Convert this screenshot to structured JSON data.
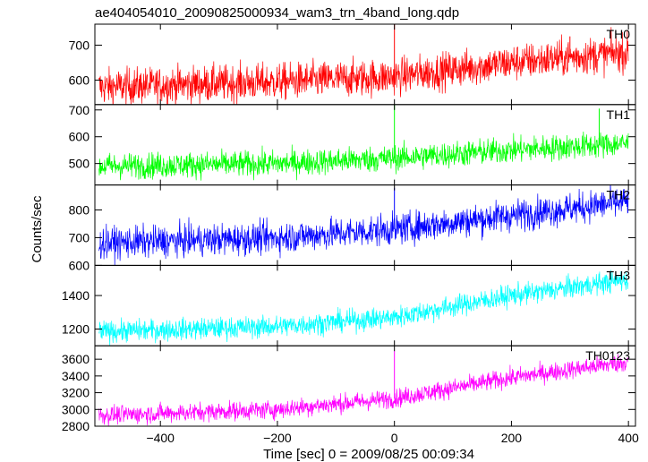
{
  "title": "ae404054010_20090825000934_wam3_trn_4band_long.qdp",
  "xlabel": "Time [sec] 0 = 2009/08/25 00:09:34",
  "ylabel": "Counts/sec",
  "chart_data": {
    "type": "line",
    "xlim": [
      -512,
      412
    ],
    "x_ticks": [
      -400,
      -200,
      0,
      200,
      400
    ],
    "x_tick_labels": [
      "−400",
      "−200",
      "0",
      "200",
      "400"
    ],
    "grid": false,
    "panels": [
      {
        "name": "TH0",
        "color": "#ff0000",
        "ylim": [
          530,
          760
        ],
        "y_ticks": [
          600,
          700
        ],
        "y_tick_labels": [
          "600",
          "700"
        ],
        "trend": [
          {
            "x": -500,
            "y": 580
          },
          {
            "x": -200,
            "y": 595
          },
          {
            "x": 0,
            "y": 610
          },
          {
            "x": 200,
            "y": 650
          },
          {
            "x": 400,
            "y": 680
          }
        ],
        "noise": 26,
        "spikes": [
          {
            "x": 0,
            "y": 760
          },
          {
            "x": 300,
            "y": 725
          }
        ]
      },
      {
        "name": "TH1",
        "color": "#00ff00",
        "ylim": [
          420,
          720
        ],
        "y_ticks": [
          500,
          600,
          700
        ],
        "y_tick_labels": [
          "500",
          "600",
          "700"
        ],
        "trend": [
          {
            "x": -500,
            "y": 490
          },
          {
            "x": -200,
            "y": 500
          },
          {
            "x": 0,
            "y": 520
          },
          {
            "x": 200,
            "y": 550
          },
          {
            "x": 400,
            "y": 575
          }
        ],
        "noise": 24,
        "spikes": [
          {
            "x": 0,
            "y": 720
          },
          {
            "x": 350,
            "y": 705
          }
        ]
      },
      {
        "name": "TH2",
        "color": "#0000ff",
        "ylim": [
          600,
          890
        ],
        "y_ticks": [
          600,
          700,
          800
        ],
        "y_tick_labels": [
          "600",
          "700",
          "800"
        ],
        "trend": [
          {
            "x": -500,
            "y": 680
          },
          {
            "x": -200,
            "y": 700
          },
          {
            "x": 0,
            "y": 730
          },
          {
            "x": 200,
            "y": 780
          },
          {
            "x": 400,
            "y": 830
          }
        ],
        "noise": 28,
        "spikes": [
          {
            "x": 0,
            "y": 880
          }
        ]
      },
      {
        "name": "TH3",
        "color": "#00ffff",
        "ylim": [
          1100,
          1580
        ],
        "y_ticks": [
          1200,
          1400
        ],
        "y_tick_labels": [
          "1200",
          "1400"
        ],
        "trend": [
          {
            "x": -500,
            "y": 1185
          },
          {
            "x": -200,
            "y": 1215
          },
          {
            "x": 0,
            "y": 1270
          },
          {
            "x": 200,
            "y": 1400
          },
          {
            "x": 400,
            "y": 1495
          }
        ],
        "noise": 32,
        "spikes": []
      },
      {
        "name": "TH0123",
        "color": "#ff00ff",
        "ylim": [
          2800,
          3760
        ],
        "y_ticks": [
          2800,
          3000,
          3200,
          3400,
          3600
        ],
        "y_tick_labels": [
          "2800",
          "3000",
          "3200",
          "3400",
          "3600"
        ],
        "trend": [
          {
            "x": -500,
            "y": 2930
          },
          {
            "x": -200,
            "y": 3000
          },
          {
            "x": 0,
            "y": 3130
          },
          {
            "x": 200,
            "y": 3380
          },
          {
            "x": 400,
            "y": 3570
          }
        ],
        "noise": 55,
        "spikes": [
          {
            "x": 0,
            "y": 3700
          }
        ]
      }
    ]
  }
}
